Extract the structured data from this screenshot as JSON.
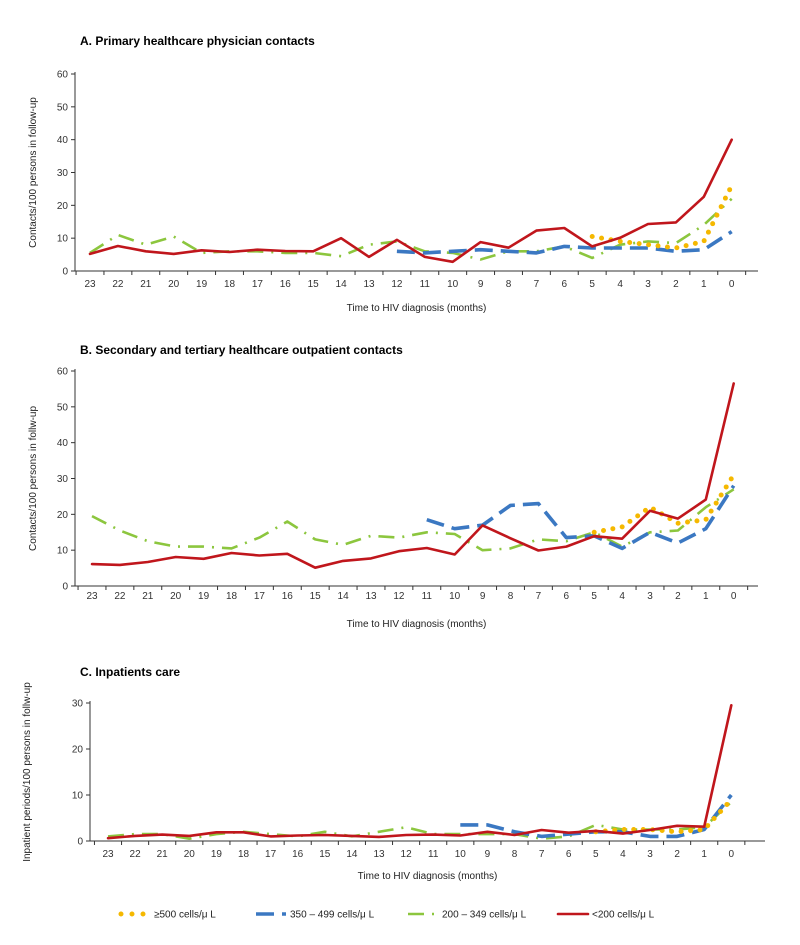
{
  "chart_data": [
    {
      "type": "line",
      "title": "A. Primary healthcare physician contacts",
      "xlabel": "Time to HIV diagnosis (months)",
      "ylabel": "Contacts/100 persons in follow-up",
      "ylim": [
        0,
        60
      ],
      "yticks": [
        0,
        10,
        20,
        30,
        40,
        50,
        60
      ],
      "categories": [
        "23",
        "22",
        "21",
        "20",
        "19",
        "18",
        "17",
        "16",
        "15",
        "14",
        "13",
        "12",
        "11",
        "10",
        "9",
        "8",
        "7",
        "6",
        "5",
        "4",
        "3",
        "2",
        "1",
        "0"
      ],
      "series": [
        {
          "name": "≥500 cells/μL",
          "values": [
            null,
            null,
            null,
            null,
            null,
            null,
            null,
            null,
            null,
            null,
            null,
            null,
            null,
            null,
            null,
            null,
            null,
            null,
            10.5,
            9,
            8,
            7,
            9,
            26
          ]
        },
        {
          "name": "350–499 cells/μL",
          "values": [
            null,
            null,
            null,
            null,
            null,
            null,
            null,
            null,
            null,
            null,
            null,
            6,
            5.5,
            6,
            6.5,
            6,
            5.5,
            7.5,
            7,
            7,
            7,
            6,
            6.5,
            12
          ]
        },
        {
          "name": "200–349 cells/μL",
          "values": [
            5.5,
            11,
            8,
            10.5,
            5.5,
            6,
            6,
            5.5,
            5.5,
            4.5,
            8,
            9,
            6,
            5.5,
            3.5,
            6,
            6,
            7.5,
            4,
            8,
            9,
            8.5,
            14,
            22
          ]
        },
        {
          "name": "<200 cells/μL",
          "values": [
            5.2,
            7.6,
            6,
            5.2,
            6.3,
            5.8,
            6.5,
            6.1,
            6,
            10,
            4.3,
            9.5,
            4.3,
            2.8,
            8.8,
            7.1,
            12.3,
            13.1,
            7.5,
            10.1,
            14.3,
            14.8,
            22.6,
            40
          ]
        }
      ]
    },
    {
      "type": "line",
      "title": "B. Secondary and tertiary healthcare outpatient contacts",
      "xlabel": "Time to HIV diagnosis (months)",
      "ylabel": "Contacts/100 persons in follw-up",
      "ylim": [
        0,
        60
      ],
      "yticks": [
        0,
        10,
        20,
        30,
        40,
        50,
        60
      ],
      "categories": [
        "23",
        "22",
        "21",
        "20",
        "19",
        "18",
        "17",
        "16",
        "15",
        "14",
        "13",
        "12",
        "11",
        "10",
        "9",
        "8",
        "7",
        "6",
        "5",
        "4",
        "3",
        "2",
        "1",
        "0"
      ],
      "series": [
        {
          "name": "≥500 cells/μL",
          "values": [
            null,
            null,
            null,
            null,
            null,
            null,
            null,
            null,
            null,
            null,
            null,
            null,
            null,
            null,
            null,
            null,
            null,
            null,
            15,
            16.5,
            22,
            17.5,
            18.5,
            31
          ]
        },
        {
          "name": "350–499 cells/μL",
          "values": [
            null,
            null,
            null,
            null,
            null,
            null,
            null,
            null,
            null,
            null,
            null,
            null,
            18.5,
            16,
            17,
            22.5,
            23,
            13.5,
            14,
            10.5,
            15,
            12,
            16,
            28
          ]
        },
        {
          "name": "200–349 cells/μL",
          "values": [
            19.5,
            15.5,
            12.5,
            11,
            11,
            10.5,
            13.5,
            18,
            13,
            11.5,
            14,
            13.5,
            15,
            14.5,
            10,
            10.5,
            13,
            12.5,
            15,
            11,
            15,
            15.5,
            22,
            27
          ]
        },
        {
          "name": "<200 cells/μL",
          "values": [
            6.1,
            5.9,
            6.7,
            8.1,
            7.6,
            9.2,
            8.5,
            9,
            5.1,
            7,
            7.7,
            9.7,
            10.6,
            8.8,
            16.9,
            13.3,
            9.9,
            11,
            13.9,
            13.2,
            21,
            18.8,
            24.1,
            56.5
          ]
        }
      ]
    },
    {
      "type": "line",
      "title": "C. Inpatients care",
      "xlabel": "Time to HIV diagnosis (months)",
      "ylabel": "Inpatient periods/100 persons in follw-up",
      "ylim": [
        0,
        30
      ],
      "yticks": [
        0,
        10,
        20,
        30
      ],
      "categories": [
        "23",
        "22",
        "21",
        "20",
        "19",
        "18",
        "17",
        "16",
        "15",
        "14",
        "13",
        "12",
        "11",
        "10",
        "9",
        "8",
        "7",
        "6",
        "5",
        "4",
        "3",
        "2",
        "1",
        "0"
      ],
      "series": [
        {
          "name": "≥500 cells/μL",
          "values": [
            null,
            null,
            null,
            null,
            null,
            null,
            null,
            null,
            null,
            null,
            null,
            null,
            null,
            null,
            null,
            null,
            null,
            null,
            2,
            2.5,
            2.5,
            2,
            2.5,
            9
          ]
        },
        {
          "name": "350–499 cells/μL",
          "values": [
            null,
            null,
            null,
            null,
            null,
            null,
            null,
            null,
            null,
            null,
            null,
            null,
            null,
            3.5,
            3.5,
            2,
            1,
            1.5,
            2,
            2,
            1,
            1,
            2.5,
            10
          ]
        },
        {
          "name": "200–349 cells/μL",
          "values": [
            1,
            1.5,
            1.5,
            0.5,
            1.5,
            2,
            1.5,
            1,
            2,
            1,
            2,
            3,
            1.5,
            1.5,
            1.5,
            1.5,
            0.5,
            1,
            3.5,
            2.5,
            2.5,
            2.5,
            3,
            8.5
          ]
        },
        {
          "name": "<200 cells/μL",
          "values": [
            0.6,
            1.1,
            1.4,
            1.1,
            1.9,
            1.9,
            1,
            1.2,
            1.3,
            1.1,
            0.9,
            1.3,
            1.4,
            1.2,
            2,
            1.3,
            2.4,
            1.8,
            2.2,
            1.6,
            2.4,
            3.3,
            3.1,
            29.5
          ]
        }
      ]
    }
  ],
  "legend": [
    {
      "label": "≥500 cells/μ L",
      "style": "dotted",
      "color": "#f5b800"
    },
    {
      "label": "350 – 499 cells/μ L",
      "style": "long-dash",
      "color": "#3b78c2"
    },
    {
      "label": "200 – 349 cells/μ L",
      "style": "dash-dot",
      "color": "#8cc63e"
    },
    {
      "label": "<200 cells/μ L",
      "style": "solid",
      "color": "#c0161c"
    }
  ],
  "colors": {
    "ge500": "#f5b800",
    "c350": "#3b78c2",
    "c200": "#8cc63e",
    "lt200": "#c0161c",
    "axis": "#333333"
  }
}
